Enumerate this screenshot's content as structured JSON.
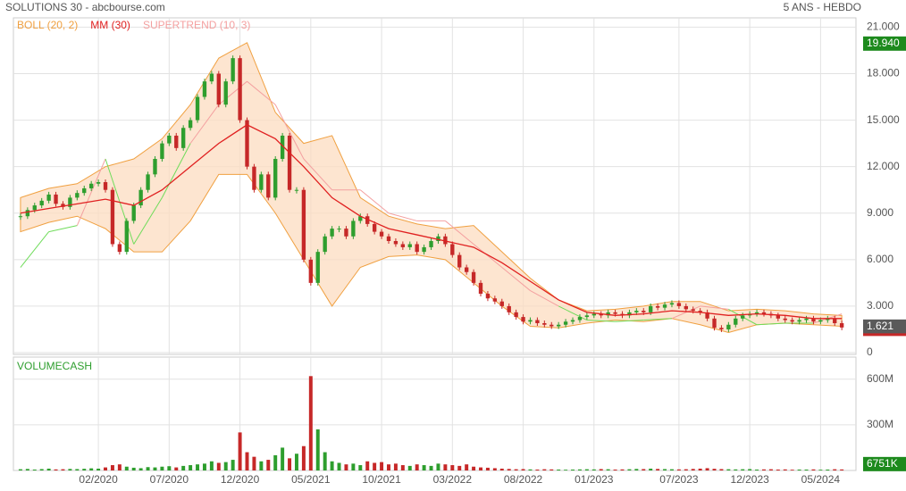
{
  "header": {
    "title": "SOLUTIONS 30 - abcbourse.com",
    "period": "5 ANS - HEBDO"
  },
  "chart_data": [
    {
      "type": "candlestick",
      "xlim": [
        -1,
        118
      ],
      "xticks": [
        {
          "value": 11,
          "label": "02/2020"
        },
        {
          "value": 21,
          "label": "07/2020"
        },
        {
          "value": 31,
          "label": "12/2020"
        },
        {
          "value": 41,
          "label": "05/2021"
        },
        {
          "value": 51,
          "label": "10/2021"
        },
        {
          "value": 61,
          "label": "03/2022"
        },
        {
          "value": 71,
          "label": "08/2022"
        },
        {
          "value": 81,
          "label": "01/2023"
        },
        {
          "value": 93,
          "label": "07/2023"
        },
        {
          "value": 103,
          "label": "12/2023"
        },
        {
          "value": 113,
          "label": "05/2024"
        }
      ],
      "ylim": [
        0,
        21.6
      ],
      "yticks": [
        0,
        {
          "value": 3,
          "label": "3.000"
        },
        {
          "value": 6,
          "label": "6.000"
        },
        {
          "value": 9,
          "label": "9.000"
        },
        {
          "value": 12,
          "label": "12.000"
        },
        {
          "value": 15,
          "label": "15.000"
        },
        {
          "value": 18,
          "label": "18.000"
        },
        {
          "value": 21,
          "label": "21.000"
        }
      ],
      "grid": true,
      "up_color": "#2e9e2e",
      "down_color": "#c62828",
      "values": [
        8.8,
        9.2,
        9.5,
        9.8,
        10.2,
        9.6,
        9.4,
        10.0,
        10.3,
        10.6,
        10.9,
        11.0,
        10.5,
        7.0,
        6.5,
        8.5,
        9.5,
        10.5,
        11.5,
        12.5,
        13.5,
        14.0,
        13.2,
        14.5,
        15.0,
        16.5,
        17.5,
        18.0,
        16.0,
        17.5,
        19.0,
        15.0,
        12.0,
        10.5,
        11.5,
        10.0,
        12.5,
        14.0,
        10.5,
        10.5,
        6.0,
        4.5,
        6.5,
        7.5,
        8.0,
        8.0,
        7.5,
        8.5,
        8.8,
        8.3,
        7.8,
        7.5,
        7.2,
        7.0,
        6.8,
        7.0,
        6.5,
        6.8,
        7.2,
        7.5,
        7.0,
        6.3,
        5.5,
        5.2,
        4.5,
        3.8,
        3.5,
        3.3,
        3.0,
        2.6,
        2.3,
        2.0,
        2.1,
        1.9,
        1.8,
        1.7,
        1.8,
        2.0,
        2.1,
        2.3,
        2.4,
        2.5,
        2.4,
        2.6,
        2.5,
        2.4,
        2.6,
        2.7,
        2.6,
        3.0,
        2.9,
        3.1,
        3.2,
        3.0,
        2.8,
        2.7,
        2.6,
        2.2,
        1.6,
        1.5,
        1.8,
        2.2,
        2.4,
        2.5,
        2.6,
        2.5,
        2.4,
        2.2,
        2.1,
        2.0,
        2.1,
        2.2,
        2.0,
        2.1,
        2.2,
        1.9,
        1.621
      ],
      "indicator_x": [
        0,
        4,
        8,
        12,
        16,
        20,
        24,
        28,
        32,
        36,
        40,
        44,
        48,
        52,
        56,
        60,
        64,
        68,
        72,
        76,
        80,
        84,
        88,
        92,
        96,
        100,
        104,
        108,
        112,
        116
      ],
      "bollinger": {
        "name": "BOLL (20, 2)",
        "color": "#f0a040",
        "fill": "#fcdcc0",
        "upper": [
          10.0,
          10.6,
          10.9,
          12.0,
          12.5,
          13.8,
          16.0,
          19.0,
          20.0,
          15.5,
          13.5,
          14.0,
          10.0,
          8.8,
          8.3,
          8.0,
          8.2,
          6.5,
          4.8,
          3.4,
          2.7,
          2.8,
          3.0,
          3.3,
          3.3,
          2.7,
          2.8,
          2.7,
          2.5,
          2.4
        ],
        "lower": [
          7.8,
          8.4,
          8.8,
          8.0,
          6.5,
          6.5,
          8.5,
          11.5,
          11.5,
          9.0,
          6.0,
          3.0,
          5.5,
          6.2,
          6.3,
          6.0,
          4.5,
          3.0,
          1.7,
          1.6,
          1.9,
          2.1,
          2.0,
          2.2,
          1.8,
          1.3,
          1.8,
          1.9,
          1.8,
          1.7
        ]
      },
      "moving_average": {
        "name": "MM (30)",
        "color": "#e02020",
        "values": [
          9.0,
          9.3,
          9.6,
          9.9,
          9.5,
          10.5,
          12.0,
          13.5,
          14.7,
          13.8,
          12.0,
          10.0,
          8.8,
          8.0,
          7.6,
          7.2,
          6.8,
          5.8,
          4.6,
          3.4,
          2.6,
          2.4,
          2.5,
          2.7,
          2.6,
          2.4,
          2.5,
          2.4,
          2.2,
          2.2
        ]
      },
      "supertrend": {
        "name": "SUPERTREND (10, 3)",
        "color": "#f4a0a0",
        "color_below": "#6fdc5a",
        "values": [
          5.5,
          7.8,
          8.2,
          12.5,
          7.0,
          10.0,
          13.5,
          16.0,
          17.5,
          16.0,
          12.5,
          10.5,
          10.5,
          9.0,
          8.5,
          8.5,
          7.0,
          5.5,
          4.0,
          3.0,
          2.1,
          2.0,
          2.1,
          2.2,
          3.0,
          2.8,
          1.8,
          1.9,
          1.9,
          2.5
        ]
      },
      "last_label": {
        "value": 1.621,
        "label": "1.621"
      },
      "high_marker": {
        "value": 19.94,
        "label": "19.940"
      }
    },
    {
      "type": "bar",
      "title": "VOLUMECASH",
      "xlim": [
        -1,
        118
      ],
      "ylim": [
        0,
        745
      ],
      "yticks": [
        {
          "value": 300,
          "label": "300M"
        },
        {
          "value": 600,
          "label": "600M"
        }
      ],
      "values": [
        8,
        10,
        6,
        9,
        12,
        7,
        8,
        10,
        9,
        11,
        14,
        12,
        20,
        35,
        40,
        25,
        18,
        15,
        22,
        20,
        25,
        28,
        20,
        30,
        35,
        40,
        45,
        60,
        50,
        55,
        70,
        250,
        120,
        90,
        60,
        70,
        100,
        150,
        80,
        110,
        160,
        620,
        270,
        120,
        60,
        50,
        40,
        45,
        35,
        60,
        50,
        55,
        40,
        45,
        35,
        30,
        40,
        35,
        30,
        45,
        40,
        35,
        30,
        40,
        25,
        20,
        18,
        15,
        12,
        10,
        8,
        9,
        7,
        6,
        8,
        7,
        6,
        5,
        6,
        7,
        8,
        7,
        9,
        8,
        6,
        7,
        8,
        10,
        9,
        12,
        10,
        9,
        8,
        7,
        8,
        10,
        12,
        15,
        11,
        9,
        8,
        7,
        8,
        9,
        6,
        7,
        8,
        6,
        7,
        5,
        6,
        6,
        7,
        5,
        6,
        8,
        6.751
      ],
      "last_label": {
        "value": 6.751,
        "label": "6751K"
      }
    }
  ]
}
